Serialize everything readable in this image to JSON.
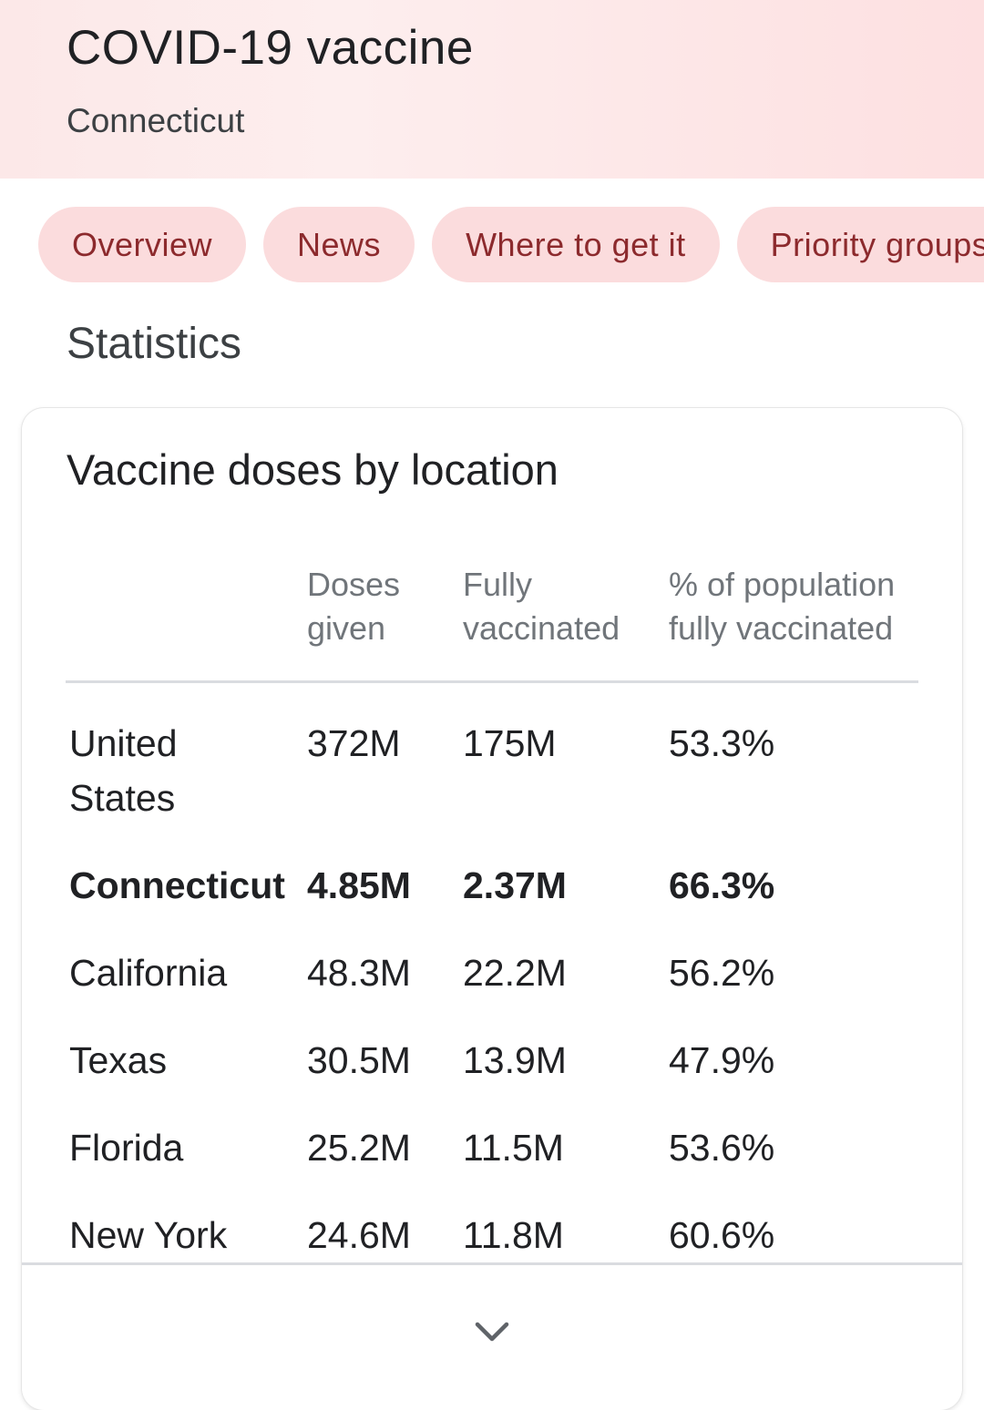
{
  "header": {
    "title": "COVID-19 vaccine",
    "subtitle": "Connecticut"
  },
  "chips": [
    {
      "label": "Overview"
    },
    {
      "label": "News"
    },
    {
      "label": "Where to get it"
    },
    {
      "label": "Priority groups"
    }
  ],
  "section_title": "Statistics",
  "card": {
    "title": "Vaccine doses by location",
    "columns": {
      "doses": [
        "Doses",
        "given"
      ],
      "fully": [
        "Fully",
        "vaccinated"
      ],
      "pct": [
        "% of population",
        "fully vaccinated"
      ]
    },
    "rows": [
      {
        "location": "United States",
        "doses": "372M",
        "fully": "175M",
        "pct": "53.3%"
      },
      {
        "location": "Connecticut",
        "doses": "4.85M",
        "fully": "2.37M",
        "pct": "66.3%"
      },
      {
        "location": "California",
        "doses": "48.3M",
        "fully": "22.2M",
        "pct": "56.2%"
      },
      {
        "location": "Texas",
        "doses": "30.5M",
        "fully": "13.9M",
        "pct": "47.9%"
      },
      {
        "location": "Florida",
        "doses": "25.2M",
        "fully": "11.5M",
        "pct": "53.6%"
      },
      {
        "location": "New York",
        "doses": "24.6M",
        "fully": "11.8M",
        "pct": "60.6%"
      }
    ],
    "expand_icon": "chevron-down-icon"
  },
  "colors": {
    "chip_background": "#fbdcdd",
    "chip_text": "#8c2a2d",
    "header_background": "#fde0e1"
  }
}
